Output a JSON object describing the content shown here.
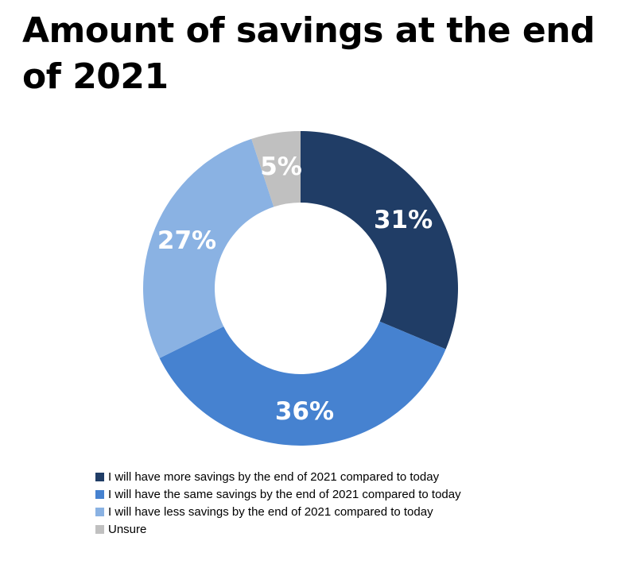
{
  "chart_data": {
    "type": "pie",
    "donut": true,
    "title": "Amount of savings at the end of 2021",
    "categories": [
      "I will have more savings by the end of 2021 compared to today",
      "I will have the same savings by the end of 2021 compared to today",
      "I will have less savings by the end of 2021 compared to today",
      "Unsure"
    ],
    "values": [
      31,
      36,
      27,
      5
    ],
    "labels": [
      "31%",
      "36%",
      "27%",
      "5%"
    ],
    "colors": [
      "#203d66",
      "#4682d0",
      "#8ab2e3",
      "#c0c0c0"
    ],
    "legend_position": "bottom"
  }
}
